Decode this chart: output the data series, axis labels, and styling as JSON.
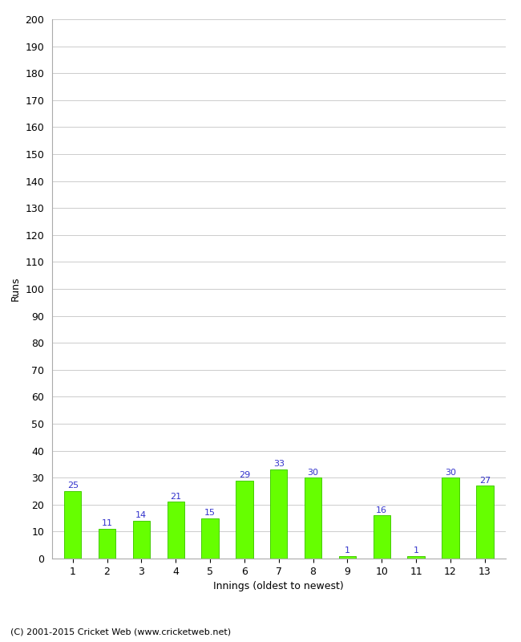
{
  "categories": [
    "1",
    "2",
    "3",
    "4",
    "5",
    "6",
    "7",
    "8",
    "9",
    "10",
    "11",
    "12",
    "13"
  ],
  "values": [
    25,
    11,
    14,
    21,
    15,
    29,
    33,
    30,
    1,
    16,
    1,
    30,
    27
  ],
  "bar_color": "#66ff00",
  "bar_edge_color": "#44cc00",
  "label_color": "#3333cc",
  "xlabel": "Innings (oldest to newest)",
  "ylabel": "Runs",
  "ylim": [
    0,
    200
  ],
  "ytick_step": 10,
  "footnote": "(C) 2001-2015 Cricket Web (www.cricketweb.net)",
  "background_color": "#ffffff",
  "grid_color": "#cccccc",
  "label_fontsize": 8,
  "axis_fontsize": 9,
  "tick_fontsize": 9,
  "footnote_fontsize": 8,
  "bar_width": 0.5
}
